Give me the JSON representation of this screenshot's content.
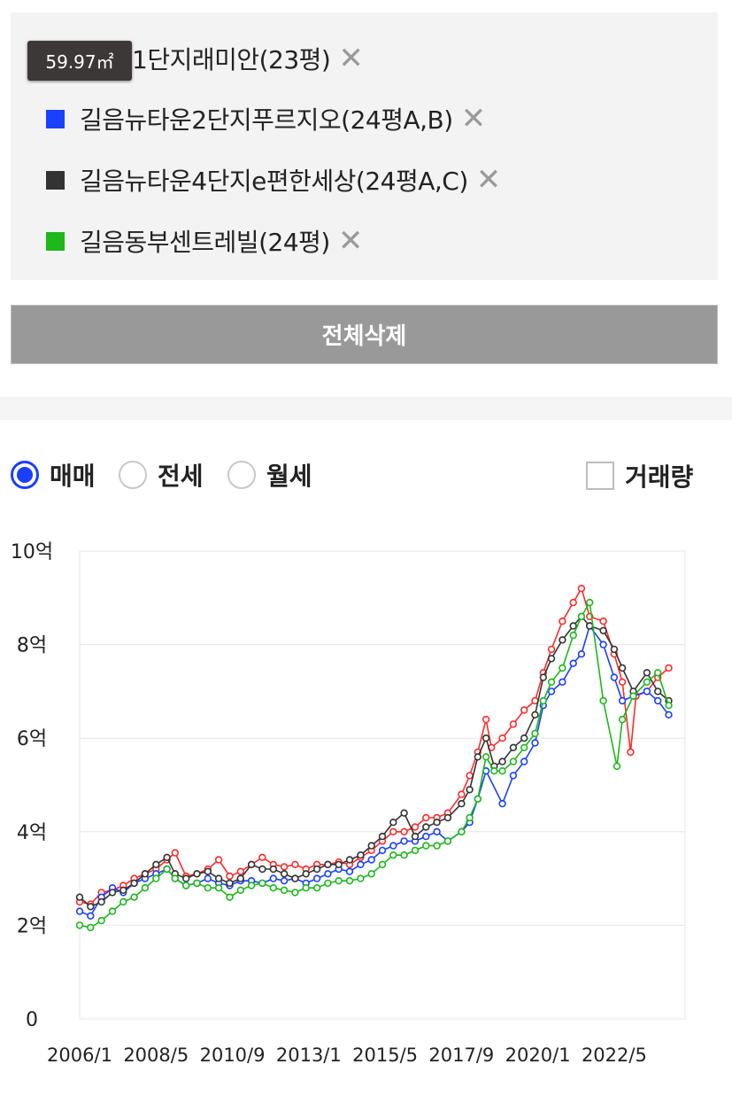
{
  "legend": {
    "tooltip": "59.97㎡",
    "close_glyph": "✕",
    "items": [
      {
        "label": "1단지래미안(23평)",
        "color": "#ff2b2b"
      },
      {
        "label": "길음뉴타운2단지푸르지오(24평A,B)",
        "color": "#1a3fff"
      },
      {
        "label": "길음뉴타운4단지e편한세상(24평A,C)",
        "color": "#333333"
      },
      {
        "label": "길음동부센트레빌(24평)",
        "color": "#1cb81c"
      }
    ]
  },
  "delete_all_label": "전체삭제",
  "modes": [
    {
      "label": "매매",
      "selected": true
    },
    {
      "label": "전세",
      "selected": false
    },
    {
      "label": "월세",
      "selected": false
    }
  ],
  "volume_toggle": {
    "label": "거래량",
    "checked": false
  },
  "chart_data": {
    "type": "line",
    "title": "",
    "xlabel": "",
    "ylabel": "",
    "ylim": [
      0,
      10
    ],
    "xlim": [
      "2006-01",
      "2024-07"
    ],
    "x_ticks": [
      "2006-01",
      "2008-05",
      "2010-09",
      "2013-01",
      "2015-05",
      "2017-09",
      "2020-01",
      "2022-05"
    ],
    "x_tick_labels": [
      "2006/1",
      "2008/5",
      "2010/9",
      "2013/1",
      "2015/5",
      "2017/9",
      "2020/1",
      "2022/5"
    ],
    "y_ticks": [
      0,
      2,
      4,
      6,
      8,
      10
    ],
    "y_tick_labels": [
      "0",
      "2억",
      "4억",
      "6억",
      "8억",
      "10억"
    ],
    "y_unit": "억원",
    "grid": true,
    "series": [
      {
        "name": "1단지래미안(23평)",
        "color": "#ff2b2b",
        "points": [
          [
            "2006-01",
            2.5
          ],
          [
            "2006-05",
            2.45
          ],
          [
            "2006-09",
            2.7
          ],
          [
            "2007-01",
            2.75
          ],
          [
            "2007-05",
            2.85
          ],
          [
            "2007-09",
            3.0
          ],
          [
            "2008-01",
            3.1
          ],
          [
            "2008-05",
            3.2
          ],
          [
            "2008-09",
            3.4
          ],
          [
            "2008-12",
            3.55
          ],
          [
            "2009-04",
            3.05
          ],
          [
            "2009-08",
            3.1
          ],
          [
            "2009-12",
            3.2
          ],
          [
            "2010-04",
            3.4
          ],
          [
            "2010-08",
            3.05
          ],
          [
            "2010-12",
            3.15
          ],
          [
            "2011-04",
            3.3
          ],
          [
            "2011-08",
            3.45
          ],
          [
            "2011-12",
            3.3
          ],
          [
            "2012-04",
            3.25
          ],
          [
            "2012-08",
            3.3
          ],
          [
            "2012-12",
            3.2
          ],
          [
            "2013-04",
            3.3
          ],
          [
            "2013-08",
            3.3
          ],
          [
            "2013-12",
            3.35
          ],
          [
            "2014-04",
            3.3
          ],
          [
            "2014-08",
            3.45
          ],
          [
            "2014-12",
            3.6
          ],
          [
            "2015-04",
            3.8
          ],
          [
            "2015-08",
            4.0
          ],
          [
            "2015-12",
            4.0
          ],
          [
            "2016-04",
            4.1
          ],
          [
            "2016-08",
            4.3
          ],
          [
            "2016-12",
            4.3
          ],
          [
            "2017-04",
            4.4
          ],
          [
            "2017-09",
            4.8
          ],
          [
            "2017-12",
            5.2
          ],
          [
            "2018-03",
            5.7
          ],
          [
            "2018-06",
            6.4
          ],
          [
            "2018-08",
            5.8
          ],
          [
            "2018-12",
            6.0
          ],
          [
            "2019-04",
            6.3
          ],
          [
            "2019-08",
            6.6
          ],
          [
            "2019-12",
            6.8
          ],
          [
            "2020-03",
            7.4
          ],
          [
            "2020-06",
            7.9
          ],
          [
            "2020-10",
            8.5
          ],
          [
            "2021-02",
            8.9
          ],
          [
            "2021-05",
            9.2
          ],
          [
            "2021-08",
            8.6
          ],
          [
            "2022-01",
            8.5
          ],
          [
            "2022-05",
            7.8
          ],
          [
            "2022-08",
            7.2
          ],
          [
            "2022-11",
            5.7
          ],
          [
            "2023-01",
            6.9
          ],
          [
            "2023-05",
            7.0
          ],
          [
            "2023-09",
            7.3
          ],
          [
            "2024-01",
            7.5
          ]
        ]
      },
      {
        "name": "길음뉴타운2단지푸르지오(24평A,B)",
        "color": "#1a3fff",
        "points": [
          [
            "2006-01",
            2.3
          ],
          [
            "2006-05",
            2.2
          ],
          [
            "2006-09",
            2.6
          ],
          [
            "2007-01",
            2.8
          ],
          [
            "2007-05",
            2.7
          ],
          [
            "2007-09",
            2.9
          ],
          [
            "2008-01",
            3.0
          ],
          [
            "2008-05",
            3.1
          ],
          [
            "2008-09",
            3.2
          ],
          [
            "2008-12",
            3.0
          ],
          [
            "2009-04",
            2.85
          ],
          [
            "2009-08",
            2.9
          ],
          [
            "2009-12",
            3.0
          ],
          [
            "2010-04",
            2.9
          ],
          [
            "2010-08",
            2.85
          ],
          [
            "2010-12",
            2.95
          ],
          [
            "2011-04",
            2.95
          ],
          [
            "2011-08",
            2.9
          ],
          [
            "2011-12",
            3.0
          ],
          [
            "2012-04",
            2.95
          ],
          [
            "2012-08",
            3.0
          ],
          [
            "2012-12",
            2.9
          ],
          [
            "2013-04",
            3.0
          ],
          [
            "2013-08",
            3.1
          ],
          [
            "2013-12",
            3.2
          ],
          [
            "2014-04",
            3.15
          ],
          [
            "2014-08",
            3.3
          ],
          [
            "2014-12",
            3.4
          ],
          [
            "2015-04",
            3.6
          ],
          [
            "2015-08",
            3.7
          ],
          [
            "2015-12",
            3.8
          ],
          [
            "2016-04",
            3.8
          ],
          [
            "2016-08",
            3.9
          ],
          [
            "2016-12",
            4.0
          ],
          [
            "2017-04",
            3.8
          ],
          [
            "2017-09",
            4.0
          ],
          [
            "2017-12",
            4.2
          ],
          [
            "2018-03",
            4.7
          ],
          [
            "2018-06",
            5.3
          ],
          [
            "2018-12",
            4.6
          ],
          [
            "2019-04",
            5.2
          ],
          [
            "2019-08",
            5.5
          ],
          [
            "2019-12",
            5.9
          ],
          [
            "2020-03",
            6.7
          ],
          [
            "2020-06",
            7.0
          ],
          [
            "2020-10",
            7.2
          ],
          [
            "2021-02",
            7.6
          ],
          [
            "2021-05",
            7.8
          ],
          [
            "2021-08",
            8.4
          ],
          [
            "2022-01",
            8.0
          ],
          [
            "2022-05",
            7.3
          ],
          [
            "2022-08",
            6.8
          ],
          [
            "2022-12",
            6.9
          ],
          [
            "2023-05",
            7.0
          ],
          [
            "2023-09",
            6.8
          ],
          [
            "2024-01",
            6.5
          ]
        ]
      },
      {
        "name": "길음뉴타운4단지e편한세상(24평A,C)",
        "color": "#333333",
        "points": [
          [
            "2006-01",
            2.6
          ],
          [
            "2006-05",
            2.4
          ],
          [
            "2006-09",
            2.5
          ],
          [
            "2007-01",
            2.7
          ],
          [
            "2007-05",
            2.75
          ],
          [
            "2007-09",
            2.9
          ],
          [
            "2008-01",
            3.1
          ],
          [
            "2008-05",
            3.3
          ],
          [
            "2008-09",
            3.45
          ],
          [
            "2008-12",
            3.1
          ],
          [
            "2009-04",
            3.0
          ],
          [
            "2009-08",
            3.1
          ],
          [
            "2009-12",
            3.15
          ],
          [
            "2010-04",
            3.0
          ],
          [
            "2010-08",
            2.9
          ],
          [
            "2010-12",
            3.0
          ],
          [
            "2011-04",
            3.3
          ],
          [
            "2011-08",
            3.2
          ],
          [
            "2011-12",
            3.2
          ],
          [
            "2012-04",
            3.1
          ],
          [
            "2012-08",
            3.0
          ],
          [
            "2012-12",
            3.1
          ],
          [
            "2013-04",
            3.2
          ],
          [
            "2013-08",
            3.3
          ],
          [
            "2013-12",
            3.3
          ],
          [
            "2014-04",
            3.4
          ],
          [
            "2014-08",
            3.5
          ],
          [
            "2014-12",
            3.7
          ],
          [
            "2015-04",
            3.9
          ],
          [
            "2015-08",
            4.2
          ],
          [
            "2015-12",
            4.4
          ],
          [
            "2016-04",
            3.9
          ],
          [
            "2016-08",
            4.1
          ],
          [
            "2016-12",
            4.2
          ],
          [
            "2017-04",
            4.3
          ],
          [
            "2017-09",
            4.6
          ],
          [
            "2017-12",
            4.9
          ],
          [
            "2018-03",
            5.6
          ],
          [
            "2018-06",
            6.0
          ],
          [
            "2018-09",
            5.4
          ],
          [
            "2018-12",
            5.5
          ],
          [
            "2019-04",
            5.8
          ],
          [
            "2019-08",
            6.0
          ],
          [
            "2019-12",
            6.5
          ],
          [
            "2020-03",
            7.3
          ],
          [
            "2020-06",
            7.7
          ],
          [
            "2020-10",
            8.1
          ],
          [
            "2021-02",
            8.4
          ],
          [
            "2021-05",
            8.6
          ],
          [
            "2021-08",
            8.4
          ],
          [
            "2022-01",
            8.3
          ],
          [
            "2022-05",
            7.9
          ],
          [
            "2022-08",
            7.5
          ],
          [
            "2022-12",
            7.0
          ],
          [
            "2023-05",
            7.4
          ],
          [
            "2023-09",
            7.0
          ],
          [
            "2024-01",
            6.8
          ]
        ]
      },
      {
        "name": "길음동부센트레빌(24평)",
        "color": "#1cb81c",
        "points": [
          [
            "2006-01",
            2.0
          ],
          [
            "2006-05",
            1.95
          ],
          [
            "2006-09",
            2.1
          ],
          [
            "2007-01",
            2.3
          ],
          [
            "2007-05",
            2.5
          ],
          [
            "2007-09",
            2.6
          ],
          [
            "2008-01",
            2.8
          ],
          [
            "2008-05",
            3.0
          ],
          [
            "2008-09",
            3.2
          ],
          [
            "2008-12",
            3.0
          ],
          [
            "2009-04",
            2.85
          ],
          [
            "2009-08",
            2.9
          ],
          [
            "2009-12",
            2.8
          ],
          [
            "2010-04",
            2.8
          ],
          [
            "2010-08",
            2.6
          ],
          [
            "2010-12",
            2.75
          ],
          [
            "2011-04",
            2.85
          ],
          [
            "2011-08",
            2.9
          ],
          [
            "2011-12",
            2.8
          ],
          [
            "2012-04",
            2.75
          ],
          [
            "2012-08",
            2.7
          ],
          [
            "2012-12",
            2.8
          ],
          [
            "2013-04",
            2.8
          ],
          [
            "2013-08",
            2.9
          ],
          [
            "2013-12",
            2.95
          ],
          [
            "2014-04",
            2.95
          ],
          [
            "2014-08",
            3.0
          ],
          [
            "2014-12",
            3.1
          ],
          [
            "2015-04",
            3.3
          ],
          [
            "2015-08",
            3.5
          ],
          [
            "2015-12",
            3.5
          ],
          [
            "2016-04",
            3.6
          ],
          [
            "2016-08",
            3.7
          ],
          [
            "2016-12",
            3.7
          ],
          [
            "2017-04",
            3.8
          ],
          [
            "2017-09",
            4.0
          ],
          [
            "2017-12",
            4.3
          ],
          [
            "2018-03",
            4.7
          ],
          [
            "2018-06",
            5.6
          ],
          [
            "2018-09",
            5.3
          ],
          [
            "2018-12",
            5.3
          ],
          [
            "2019-04",
            5.5
          ],
          [
            "2019-08",
            5.8
          ],
          [
            "2019-12",
            6.1
          ],
          [
            "2020-03",
            6.8
          ],
          [
            "2020-06",
            7.2
          ],
          [
            "2020-10",
            7.5
          ],
          [
            "2021-02",
            8.2
          ],
          [
            "2021-05",
            8.6
          ],
          [
            "2021-08",
            8.9
          ],
          [
            "2022-01",
            6.8
          ],
          [
            "2022-06",
            5.4
          ],
          [
            "2022-08",
            6.4
          ],
          [
            "2022-12",
            6.9
          ],
          [
            "2023-05",
            7.2
          ],
          [
            "2023-09",
            7.4
          ],
          [
            "2024-01",
            6.7
          ]
        ]
      }
    ]
  }
}
